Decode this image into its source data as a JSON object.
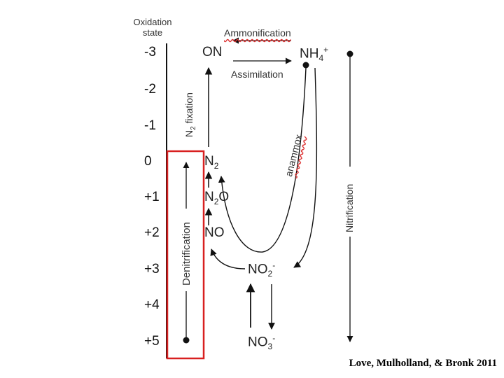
{
  "axis": {
    "title_line1": "Oxidation",
    "title_line2": "state",
    "states": [
      "-3",
      "-2",
      "-1",
      "0",
      "+1",
      "+2",
      "+3",
      "+4",
      "+5"
    ]
  },
  "species": {
    "on": "ON",
    "nh4": {
      "base": "NH",
      "sub": "4",
      "sup": "+"
    },
    "n2": {
      "base": "N",
      "sub": "2"
    },
    "n2o": {
      "base": "N",
      "sub": "2",
      "tail": "O"
    },
    "no": "NO",
    "no2": {
      "base": "NO",
      "sub": "2",
      "sup": "-"
    },
    "no3": {
      "base": "NO",
      "sub": "3",
      "sup": "-"
    }
  },
  "processes": {
    "ammonification": "Ammonification",
    "assimilation": "Assimilation",
    "n2_fixation": {
      "base": "N",
      "sub": "2",
      "tail": " fixation"
    },
    "anammox": "anammox",
    "nitrification": "Nitrification",
    "denitrification": "Denitrification"
  },
  "colors": {
    "highlight_box": "#d82020",
    "lines": "#111111"
  },
  "citation": "Love, Mulholland, & Bronk 2011"
}
